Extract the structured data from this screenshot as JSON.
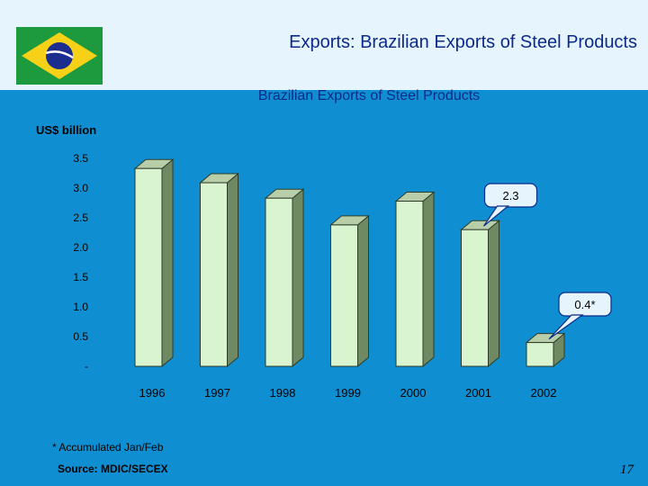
{
  "header": {
    "title": "Exports: Brazilian Exports of Steel Products"
  },
  "flag": {
    "name": "Brazil flag",
    "colors": {
      "green": "#1e9a3e",
      "yellow": "#f7d117",
      "blue": "#1b2d8e"
    }
  },
  "footer": {
    "note": "* Accumulated Jan/Feb",
    "source": "Source: MDIC/SECEX",
    "page": "17"
  },
  "colors": {
    "background": "#0f8fd2",
    "band": "#e6f5fd",
    "bar_front": "#d9f5cf",
    "bar_side": "#6f8a62",
    "bar_top": "#b7cea9",
    "title": "#0b2a8a"
  },
  "chart_data": {
    "type": "bar",
    "title": "Brazilian Exports of Steel Products",
    "ylabel": "US$ billion",
    "xlabel": "",
    "categories": [
      "1996",
      "1997",
      "1998",
      "1999",
      "2000",
      "2001",
      "2002"
    ],
    "values": [
      3.33,
      3.09,
      2.83,
      2.38,
      2.78,
      2.3,
      0.4
    ],
    "ylim": [
      0,
      3.5
    ],
    "yticks": [
      3.5,
      3.0,
      2.5,
      2.0,
      1.5,
      1.0,
      0.5,
      0
    ],
    "ytick_labels": [
      "3.5",
      "3.0",
      "2.5",
      "2.0",
      "1.5",
      "1.0",
      "0.5",
      "-"
    ],
    "callouts": [
      {
        "category": "2001",
        "label": "2.3"
      },
      {
        "category": "2002",
        "label": "0.4*"
      }
    ],
    "grid": false,
    "legend": "none"
  }
}
